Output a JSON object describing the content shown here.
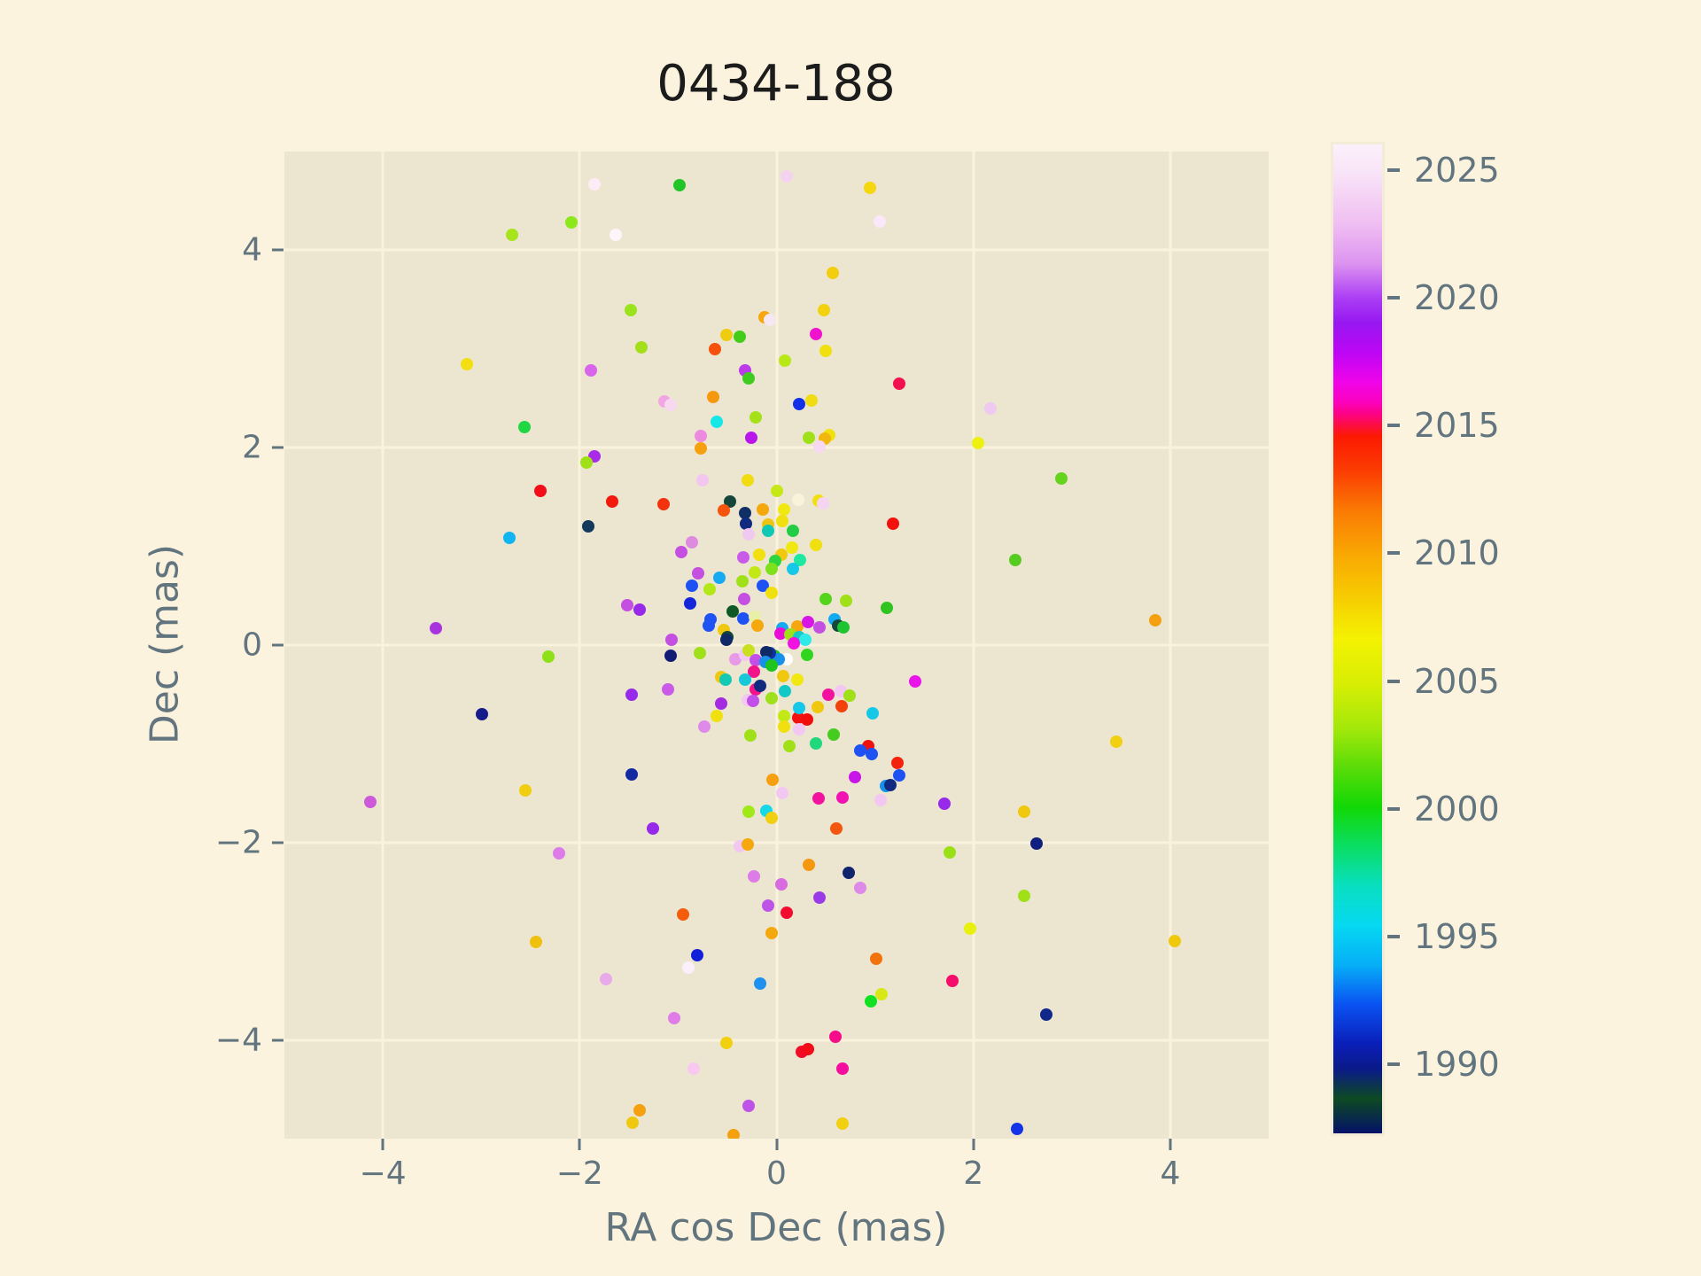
{
  "title": {
    "text": "0434-188"
  },
  "axes": {
    "xlabel": "RA cos Dec (mas)",
    "ylabel": "Dec (mas)",
    "xtick_labels": [
      "−4",
      "−2",
      "0",
      "2",
      "4"
    ],
    "ytick_labels": [
      "−4",
      "−2",
      "0",
      "2",
      "4"
    ]
  },
  "colorbar": {
    "tick_labels": [
      "2025",
      "2020",
      "2015",
      "2010",
      "2005",
      "2000",
      "1995",
      "1990"
    ]
  },
  "colors": {
    "figure_background": "#FBF3DE",
    "axes_background": "#ECE6D1",
    "grid": "#FAF2DC",
    "tick_text": "#62757f",
    "title_text": "#1c1c1c"
  },
  "chart_data": {
    "type": "scatter",
    "title": "0434-188",
    "xlabel": "RA cos Dec (mas)",
    "ylabel": "Dec (mas)",
    "xlim": [
      -5,
      5
    ],
    "ylim": [
      -5,
      5
    ],
    "xticks": [
      -4,
      -2,
      0,
      2,
      4
    ],
    "yticks": [
      -4,
      -2,
      0,
      2,
      4
    ],
    "grid": true,
    "legend": "none",
    "colorbar": {
      "label_values": [
        2025,
        2020,
        2015,
        2010,
        2005,
        2000,
        1995,
        1990
      ],
      "vmin": 1987.3,
      "vmax": 2026,
      "colormap": "gist_ncar",
      "meaning": "epoch year of each position measurement"
    },
    "points": [
      [
        -1.85,
        4.67,
        "#FDEBF7"
      ],
      [
        -2.08,
        4.28,
        "#8CE81A"
      ],
      [
        -2.69,
        4.16,
        "#A8E41C"
      ],
      [
        -3.15,
        2.85,
        "#F2DE11"
      ],
      [
        -1.89,
        2.78,
        "#D865EA"
      ],
      [
        -2.56,
        2.21,
        "#1ED743"
      ],
      [
        -1.85,
        1.91,
        "#A82BEA"
      ],
      [
        -1.93,
        1.85,
        "#9FE019"
      ],
      [
        0.1,
        4.75,
        "#F4D3F1"
      ],
      [
        0.95,
        4.63,
        "#F5D60F"
      ],
      [
        -0.99,
        4.66,
        "#21C528"
      ],
      [
        1.05,
        4.29,
        "#FAE8FA"
      ],
      [
        -1.63,
        4.16,
        "#FCF5FA"
      ],
      [
        0.57,
        3.77,
        "#F2CE0F"
      ],
      [
        -1.48,
        3.39,
        "#9BE31C"
      ],
      [
        -0.12,
        3.32,
        "#F5A80E"
      ],
      [
        -0.07,
        3.29,
        "#F6E7F1"
      ],
      [
        0.48,
        3.39,
        "#F2D20F"
      ],
      [
        0.4,
        3.15,
        "#F013CE"
      ],
      [
        -0.51,
        3.14,
        "#F0CC10"
      ],
      [
        -0.37,
        3.12,
        "#44CC1B"
      ],
      [
        -0.63,
        3.0,
        "#F5510D"
      ],
      [
        -1.37,
        3.02,
        "#A3E01A"
      ],
      [
        0.09,
        2.88,
        "#B8E816"
      ],
      [
        0.5,
        2.98,
        "#F0E010"
      ],
      [
        -0.32,
        2.78,
        "#BB3BE8"
      ],
      [
        -0.28,
        2.7,
        "#3FCC1E"
      ],
      [
        1.25,
        2.65,
        "#F2114E"
      ],
      [
        -0.64,
        2.51,
        "#F5980E"
      ],
      [
        -1.14,
        2.47,
        "#F2A5E3"
      ],
      [
        -1.08,
        2.43,
        "#F8D7F0"
      ],
      [
        0.23,
        2.44,
        "#1130E8"
      ],
      [
        0.36,
        2.48,
        "#F0DC10"
      ],
      [
        -0.61,
        2.26,
        "#16E8E8"
      ],
      [
        -0.21,
        2.31,
        "#A5E018"
      ],
      [
        -0.77,
        2.12,
        "#EC8AE0"
      ],
      [
        -0.26,
        2.1,
        "#B816EA"
      ],
      [
        0.33,
        2.1,
        "#9FE019"
      ],
      [
        0.54,
        2.13,
        "#F0E010"
      ],
      [
        0.49,
        2.09,
        "#F0B80E"
      ],
      [
        0.44,
        2.01,
        "#F6D8F2"
      ],
      [
        -0.77,
        1.99,
        "#F5A00E"
      ],
      [
        2.17,
        2.4,
        "#EFC9EF"
      ],
      [
        2.05,
        2.05,
        "#EEF00F"
      ],
      [
        2.89,
        1.69,
        "#66D41F"
      ],
      [
        -2.4,
        1.56,
        "#F20D19"
      ],
      [
        -1.91,
        1.2,
        "#14395C"
      ],
      [
        -2.71,
        1.09,
        "#12B5F2"
      ],
      [
        -3.46,
        0.17,
        "#A834E0"
      ],
      [
        -2.32,
        -0.12,
        "#8EE019"
      ],
      [
        -2.99,
        -0.7,
        "#131C8A"
      ],
      [
        -2.55,
        -1.47,
        "#F0CE0F"
      ],
      [
        -4.13,
        -1.59,
        "#CD5AD8"
      ],
      [
        -1.67,
        1.45,
        "#F2190D"
      ],
      [
        -1.15,
        1.43,
        "#F2330D"
      ],
      [
        -0.47,
        1.45,
        "#14473A"
      ],
      [
        -0.75,
        1.67,
        "#F2C6EE"
      ],
      [
        -0.29,
        1.67,
        "#F0DC10"
      ],
      [
        0.0,
        1.56,
        "#C6E816"
      ],
      [
        -0.54,
        1.36,
        "#F5540D"
      ],
      [
        0.22,
        1.47,
        "#F9F3DA"
      ],
      [
        0.43,
        1.46,
        "#F0E010"
      ],
      [
        0.47,
        1.44,
        "#F4D4F0"
      ],
      [
        -0.32,
        1.34,
        "#0F2F66"
      ],
      [
        -0.31,
        1.23,
        "#102A80"
      ],
      [
        -0.14,
        1.37,
        "#F5A80E"
      ],
      [
        0.08,
        1.37,
        "#F0E810"
      ],
      [
        -0.09,
        1.22,
        "#F0C410"
      ],
      [
        -0.09,
        1.16,
        "#12C8B4"
      ],
      [
        0.06,
        1.26,
        "#F0E010"
      ],
      [
        -0.28,
        1.12,
        "#EFC9EF"
      ],
      [
        0.17,
        1.16,
        "#22CC44"
      ],
      [
        1.18,
        1.23,
        "#F2110D"
      ],
      [
        -0.86,
        1.04,
        "#DD8ADF"
      ],
      [
        -0.97,
        0.94,
        "#C44FE0"
      ],
      [
        0.16,
        0.99,
        "#F0E810"
      ],
      [
        0.4,
        1.01,
        "#F0E010"
      ],
      [
        -0.18,
        0.92,
        "#F0E010"
      ],
      [
        0.05,
        0.92,
        "#F0C810"
      ],
      [
        -0.34,
        0.89,
        "#C95BE8"
      ],
      [
        0.24,
        0.86,
        "#1FE8A0"
      ],
      [
        -0.01,
        0.85,
        "#2FD53F"
      ],
      [
        -0.22,
        0.74,
        "#C2E816"
      ],
      [
        -0.05,
        0.77,
        "#7FE01C"
      ],
      [
        0.17,
        0.77,
        "#16C8E8"
      ],
      [
        -0.8,
        0.73,
        "#C44FE0"
      ],
      [
        -0.58,
        0.68,
        "#16AAF2"
      ],
      [
        -0.86,
        0.6,
        "#1F52F2"
      ],
      [
        -0.68,
        0.57,
        "#B2E818"
      ],
      [
        -0.35,
        0.65,
        "#A0E018"
      ],
      [
        -0.14,
        0.6,
        "#1F52F2"
      ],
      [
        -0.05,
        0.53,
        "#F0E010"
      ],
      [
        -0.33,
        0.47,
        "#C44FE0"
      ],
      [
        -1.52,
        0.4,
        "#C44FE0"
      ],
      [
        -1.39,
        0.36,
        "#9629EA"
      ],
      [
        -0.88,
        0.42,
        "#1326D8"
      ],
      [
        0.5,
        0.47,
        "#55D41C"
      ],
      [
        0.71,
        0.45,
        "#9FE019"
      ],
      [
        1.12,
        0.38,
        "#2FC41F"
      ],
      [
        -0.45,
        0.34,
        "#0E5926"
      ],
      [
        -0.67,
        0.26,
        "#1F52F2"
      ],
      [
        -0.69,
        0.2,
        "#1F52F2"
      ],
      [
        -0.34,
        0.27,
        "#1F52F2"
      ],
      [
        -0.22,
        0.29,
        "#E8F0A8"
      ],
      [
        0.06,
        0.17,
        "#16AAF2"
      ],
      [
        0.21,
        0.19,
        "#F5A80E"
      ],
      [
        0.32,
        0.23,
        "#D816E8"
      ],
      [
        0.44,
        0.18,
        "#C44FE0"
      ],
      [
        0.59,
        0.26,
        "#12AAF0"
      ],
      [
        0.63,
        0.2,
        "#14473A"
      ],
      [
        0.68,
        0.18,
        "#1FC432"
      ],
      [
        0.04,
        0.12,
        "#E80ED8"
      ],
      [
        0.14,
        0.11,
        "#A0E018"
      ],
      [
        0.23,
        0.08,
        "#16C8C8"
      ],
      [
        0.29,
        0.05,
        "#2FE8E8"
      ],
      [
        0.18,
        0.02,
        "#F012E0"
      ],
      [
        0.31,
        -0.1,
        "#2FD51F"
      ],
      [
        0.1,
        -0.14,
        "#FDFDFD"
      ],
      [
        -0.02,
        -0.11,
        "#1FC41F"
      ],
      [
        0.02,
        -0.14,
        "#1690E8"
      ],
      [
        -0.07,
        -0.08,
        "#1230A0"
      ],
      [
        -0.1,
        -0.07,
        "#0F2966"
      ],
      [
        -1.07,
        0.05,
        "#C44FE0"
      ],
      [
        -0.54,
        0.15,
        "#F0C810"
      ],
      [
        -0.5,
        0.08,
        "#14473A"
      ],
      [
        -0.19,
        0.2,
        "#F5A80E"
      ],
      [
        -0.51,
        0.05,
        "#0F2966"
      ],
      [
        -1.08,
        -0.11,
        "#131C74"
      ],
      [
        -0.78,
        -0.08,
        "#A0E018"
      ],
      [
        -0.42,
        -0.14,
        "#E89AE8"
      ],
      [
        -0.32,
        -0.1,
        "#F2C8F2"
      ],
      [
        -0.28,
        -0.05,
        "#C8E020"
      ],
      [
        -0.21,
        -0.15,
        "#C24FE8"
      ],
      [
        -0.11,
        -0.17,
        "#1690E8"
      ],
      [
        -0.05,
        -0.21,
        "#1FC41F"
      ],
      [
        0.07,
        -0.31,
        "#F0C810"
      ],
      [
        0.21,
        -0.35,
        "#F0E810"
      ],
      [
        -0.23,
        -0.27,
        "#F2128A"
      ],
      [
        -0.56,
        -0.32,
        "#F0C810"
      ],
      [
        -0.52,
        -0.35,
        "#14C8B4"
      ],
      [
        -0.32,
        -0.35,
        "#16C8D8"
      ],
      [
        -0.21,
        -0.45,
        "#F2128A"
      ],
      [
        -0.17,
        -0.41,
        "#102A80"
      ],
      [
        0.09,
        -0.47,
        "#14C8C8"
      ],
      [
        -0.05,
        -0.54,
        "#9FE01C"
      ],
      [
        -0.29,
        -0.56,
        "#F2C8F2"
      ],
      [
        -0.24,
        -0.57,
        "#C24FE8"
      ],
      [
        -0.56,
        -0.59,
        "#A52BE0"
      ],
      [
        0.53,
        -0.5,
        "#F2129E"
      ],
      [
        0.65,
        -0.47,
        "#F2C8F2"
      ],
      [
        0.74,
        -0.51,
        "#A0E018"
      ],
      [
        1.41,
        -0.37,
        "#E816E8"
      ],
      [
        -1.47,
        -0.5,
        "#9629EA"
      ],
      [
        -1.1,
        -0.45,
        "#C95BE8"
      ],
      [
        -0.61,
        -0.72,
        "#F0E010"
      ],
      [
        -0.73,
        -0.83,
        "#DD8AE8"
      ],
      [
        0.08,
        -0.72,
        "#C2E816"
      ],
      [
        0.22,
        -0.74,
        "#F2110D"
      ],
      [
        0.23,
        -0.64,
        "#16C8E8"
      ],
      [
        0.42,
        -0.63,
        "#F0C810"
      ],
      [
        0.66,
        -0.62,
        "#F2430D"
      ],
      [
        0.31,
        -0.75,
        "#F20D0D"
      ],
      [
        0.98,
        -0.69,
        "#16C8E8"
      ],
      [
        0.08,
        -0.83,
        "#F0E010"
      ],
      [
        0.23,
        -0.85,
        "#F2C8F2"
      ],
      [
        -0.27,
        -0.92,
        "#A0E018"
      ],
      [
        0.58,
        -0.91,
        "#44CC1F"
      ],
      [
        0.4,
        -1.0,
        "#1FD87C"
      ],
      [
        0.13,
        -1.02,
        "#A0E018"
      ],
      [
        0.93,
        -1.02,
        "#F2110D"
      ],
      [
        0.85,
        -1.07,
        "#1F52F2"
      ],
      [
        0.97,
        -1.1,
        "#1F52F2"
      ],
      [
        1.23,
        -1.19,
        "#F2220D"
      ],
      [
        1.25,
        -1.32,
        "#1F52F2"
      ],
      [
        1.11,
        -1.43,
        "#1690E8"
      ],
      [
        1.16,
        -1.42,
        "#102A80"
      ],
      [
        0.8,
        -1.34,
        "#C816E8"
      ],
      [
        -1.47,
        -1.31,
        "#142AA0"
      ],
      [
        -0.04,
        -1.36,
        "#F5A00E"
      ],
      [
        0.06,
        -1.5,
        "#F2C8F2"
      ],
      [
        0.43,
        -1.55,
        "#F2129E"
      ],
      [
        0.67,
        -1.54,
        "#F212B4"
      ],
      [
        1.06,
        -1.57,
        "#F2C8F2"
      ],
      [
        2.43,
        0.86,
        "#55CC1F"
      ],
      [
        3.85,
        0.25,
        "#F5A00E"
      ],
      [
        3.45,
        -0.98,
        "#F0D010"
      ],
      [
        1.71,
        -1.61,
        "#9629EA"
      ],
      [
        -2.21,
        -2.11,
        "#DD7CE8"
      ],
      [
        -2.44,
        -3.01,
        "#F0C00E"
      ],
      [
        -1.73,
        -3.38,
        "#E8AAE8"
      ],
      [
        -0.28,
        -1.69,
        "#A0E816"
      ],
      [
        -0.1,
        -1.68,
        "#16D8E8"
      ],
      [
        -0.05,
        -1.75,
        "#F0D010"
      ],
      [
        -1.26,
        -1.86,
        "#9629EA"
      ],
      [
        0.61,
        -1.86,
        "#F5560D"
      ],
      [
        -0.37,
        -2.04,
        "#F2C8F2"
      ],
      [
        -0.29,
        -2.02,
        "#F5A80E"
      ],
      [
        0.33,
        -2.23,
        "#F5980E"
      ],
      [
        0.73,
        -2.31,
        "#10246E"
      ],
      [
        -0.23,
        -2.34,
        "#DD7CE8"
      ],
      [
        0.05,
        -2.42,
        "#D96BE0"
      ],
      [
        0.85,
        -2.46,
        "#DD8AE8"
      ],
      [
        0.44,
        -2.56,
        "#9B3BE8"
      ],
      [
        -0.09,
        -2.64,
        "#BE53E8"
      ],
      [
        0.1,
        -2.71,
        "#F20D30"
      ],
      [
        -0.95,
        -2.73,
        "#F25E0D"
      ],
      [
        -0.05,
        -2.92,
        "#F5A80E"
      ],
      [
        -0.81,
        -3.14,
        "#121FD8"
      ],
      [
        -0.9,
        -3.27,
        "#FBEFFB"
      ],
      [
        1.01,
        -3.18,
        "#F2720D"
      ],
      [
        -0.17,
        -3.43,
        "#1E90F0"
      ],
      [
        0.96,
        -3.61,
        "#12E022"
      ],
      [
        1.07,
        -3.54,
        "#D8E816"
      ],
      [
        -1.04,
        -3.78,
        "#E07CE8"
      ],
      [
        0.26,
        -4.12,
        "#F00D28"
      ],
      [
        0.32,
        -4.09,
        "#F20D19"
      ],
      [
        0.6,
        -3.97,
        "#F50D8A"
      ],
      [
        -0.51,
        -4.03,
        "#F0D00F"
      ],
      [
        -0.84,
        -4.29,
        "#F8C8F0"
      ],
      [
        0.67,
        -4.29,
        "#F50D9E"
      ],
      [
        -0.28,
        -4.67,
        "#BE53E8"
      ],
      [
        -1.39,
        -4.71,
        "#F5A00E"
      ],
      [
        -1.46,
        -4.84,
        "#F0C810"
      ],
      [
        -0.44,
        -4.96,
        "#F5A00E"
      ],
      [
        0.67,
        -4.85,
        "#F0D010"
      ],
      [
        2.52,
        -1.69,
        "#F0C80E"
      ],
      [
        2.64,
        -2.01,
        "#10207E"
      ],
      [
        1.76,
        -2.1,
        "#9BE016"
      ],
      [
        2.52,
        -2.54,
        "#A0E016"
      ],
      [
        1.97,
        -2.87,
        "#E8F00E"
      ],
      [
        4.05,
        -3.0,
        "#F0C80E"
      ],
      [
        1.79,
        -3.4,
        "#F50D6B"
      ],
      [
        2.74,
        -3.74,
        "#10288A"
      ],
      [
        2.44,
        -4.9,
        "#1433E8"
      ]
    ]
  }
}
